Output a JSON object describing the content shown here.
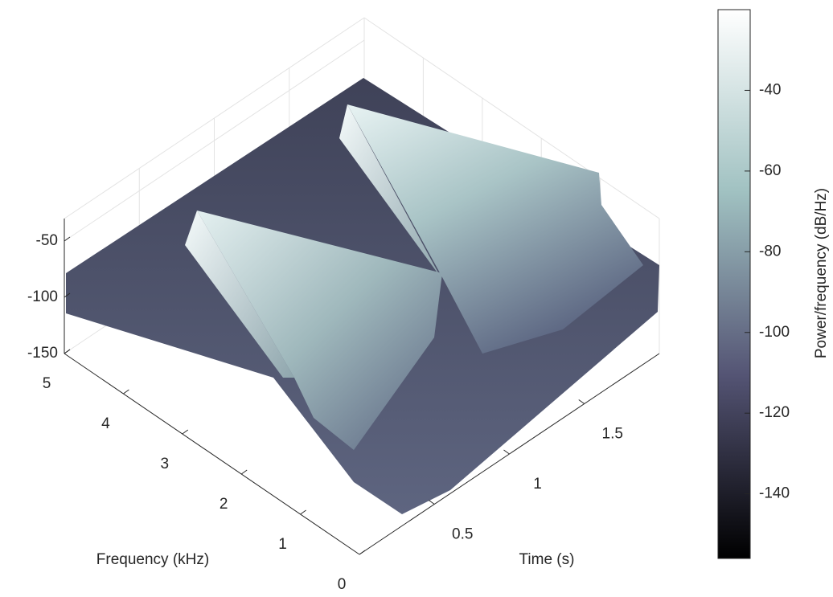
{
  "chart_data": {
    "type": "surface",
    "xlabel": "Frequency (kHz)",
    "ylabel": "Time (s)",
    "xlim": [
      0,
      5
    ],
    "xticks": [
      0,
      1,
      2,
      3,
      4,
      5
    ],
    "ylim": [
      0,
      2
    ],
    "yticks": [
      0.5,
      1,
      1.5
    ],
    "zlim": [
      -150,
      -30
    ],
    "zticks": [
      -150,
      -100,
      -50
    ],
    "grid": true,
    "colormap": [
      "#000000",
      "#545474",
      "#a0c1c1",
      "#ffffff"
    ],
    "colorbar": {
      "label": "Power/frequency (dB/Hz)",
      "clim": [
        -156,
        -20
      ],
      "ticks": [
        -140,
        -120,
        -100,
        -80,
        -60,
        -40
      ]
    }
  }
}
